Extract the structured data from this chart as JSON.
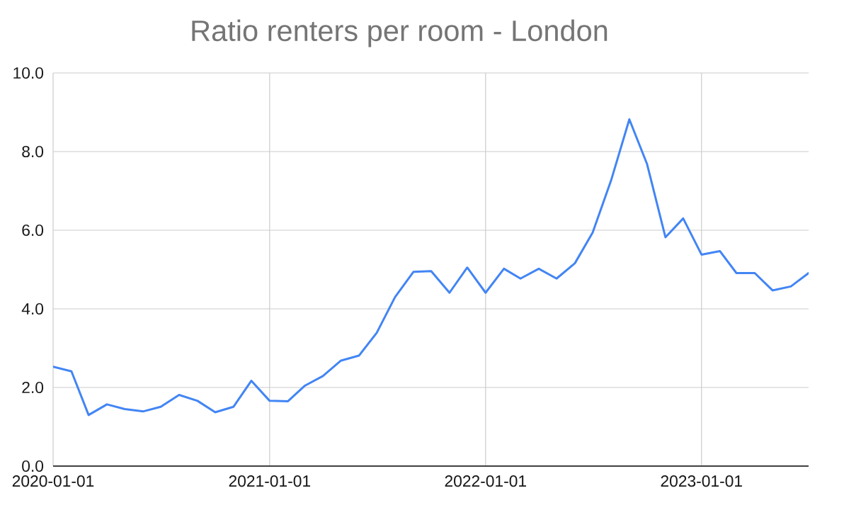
{
  "chart_data": {
    "type": "line",
    "title": "Ratio renters per room - London",
    "x": [
      "2020-01",
      "2020-02",
      "2020-03",
      "2020-04",
      "2020-05",
      "2020-06",
      "2020-07",
      "2020-08",
      "2020-09",
      "2020-10",
      "2020-11",
      "2020-12",
      "2021-01",
      "2021-02",
      "2021-03",
      "2021-04",
      "2021-05",
      "2021-06",
      "2021-07",
      "2021-08",
      "2021-09",
      "2021-10",
      "2021-11",
      "2021-12",
      "2022-01",
      "2022-02",
      "2022-03",
      "2022-04",
      "2022-05",
      "2022-06",
      "2022-07",
      "2022-08",
      "2022-09",
      "2022-10",
      "2022-11",
      "2022-12",
      "2023-01",
      "2023-02",
      "2023-03",
      "2023-04",
      "2023-05",
      "2023-06",
      "2023-07"
    ],
    "series": [
      {
        "color": "#4285f4",
        "values": [
          2.53,
          2.41,
          1.3,
          1.57,
          1.45,
          1.39,
          1.51,
          1.81,
          1.66,
          1.37,
          1.51,
          2.17,
          1.66,
          1.65,
          2.04,
          2.29,
          2.68,
          2.81,
          3.39,
          4.3,
          4.94,
          4.96,
          4.41,
          5.05,
          4.41,
          5.02,
          4.77,
          5.02,
          4.77,
          5.16,
          5.94,
          7.26,
          8.82,
          7.68,
          5.82,
          6.3,
          5.38,
          5.47,
          4.91,
          4.91,
          4.47,
          4.57,
          4.91
        ]
      }
    ],
    "xlim": [
      "2020-01-01",
      "2023-07-01"
    ],
    "xticks": [
      "2020-01-01",
      "2021-01-01",
      "2022-01-01",
      "2023-01-01"
    ],
    "ylim": [
      0,
      10
    ],
    "yticks": [
      {
        "value": 0,
        "label": "0.0"
      },
      {
        "value": 2,
        "label": "2.0"
      },
      {
        "value": 4,
        "label": "4.0"
      },
      {
        "value": 6,
        "label": "6.0"
      },
      {
        "value": 8,
        "label": "8.0"
      },
      {
        "value": 10,
        "label": "10.0"
      }
    ],
    "grid": true,
    "line_style": "solid"
  }
}
